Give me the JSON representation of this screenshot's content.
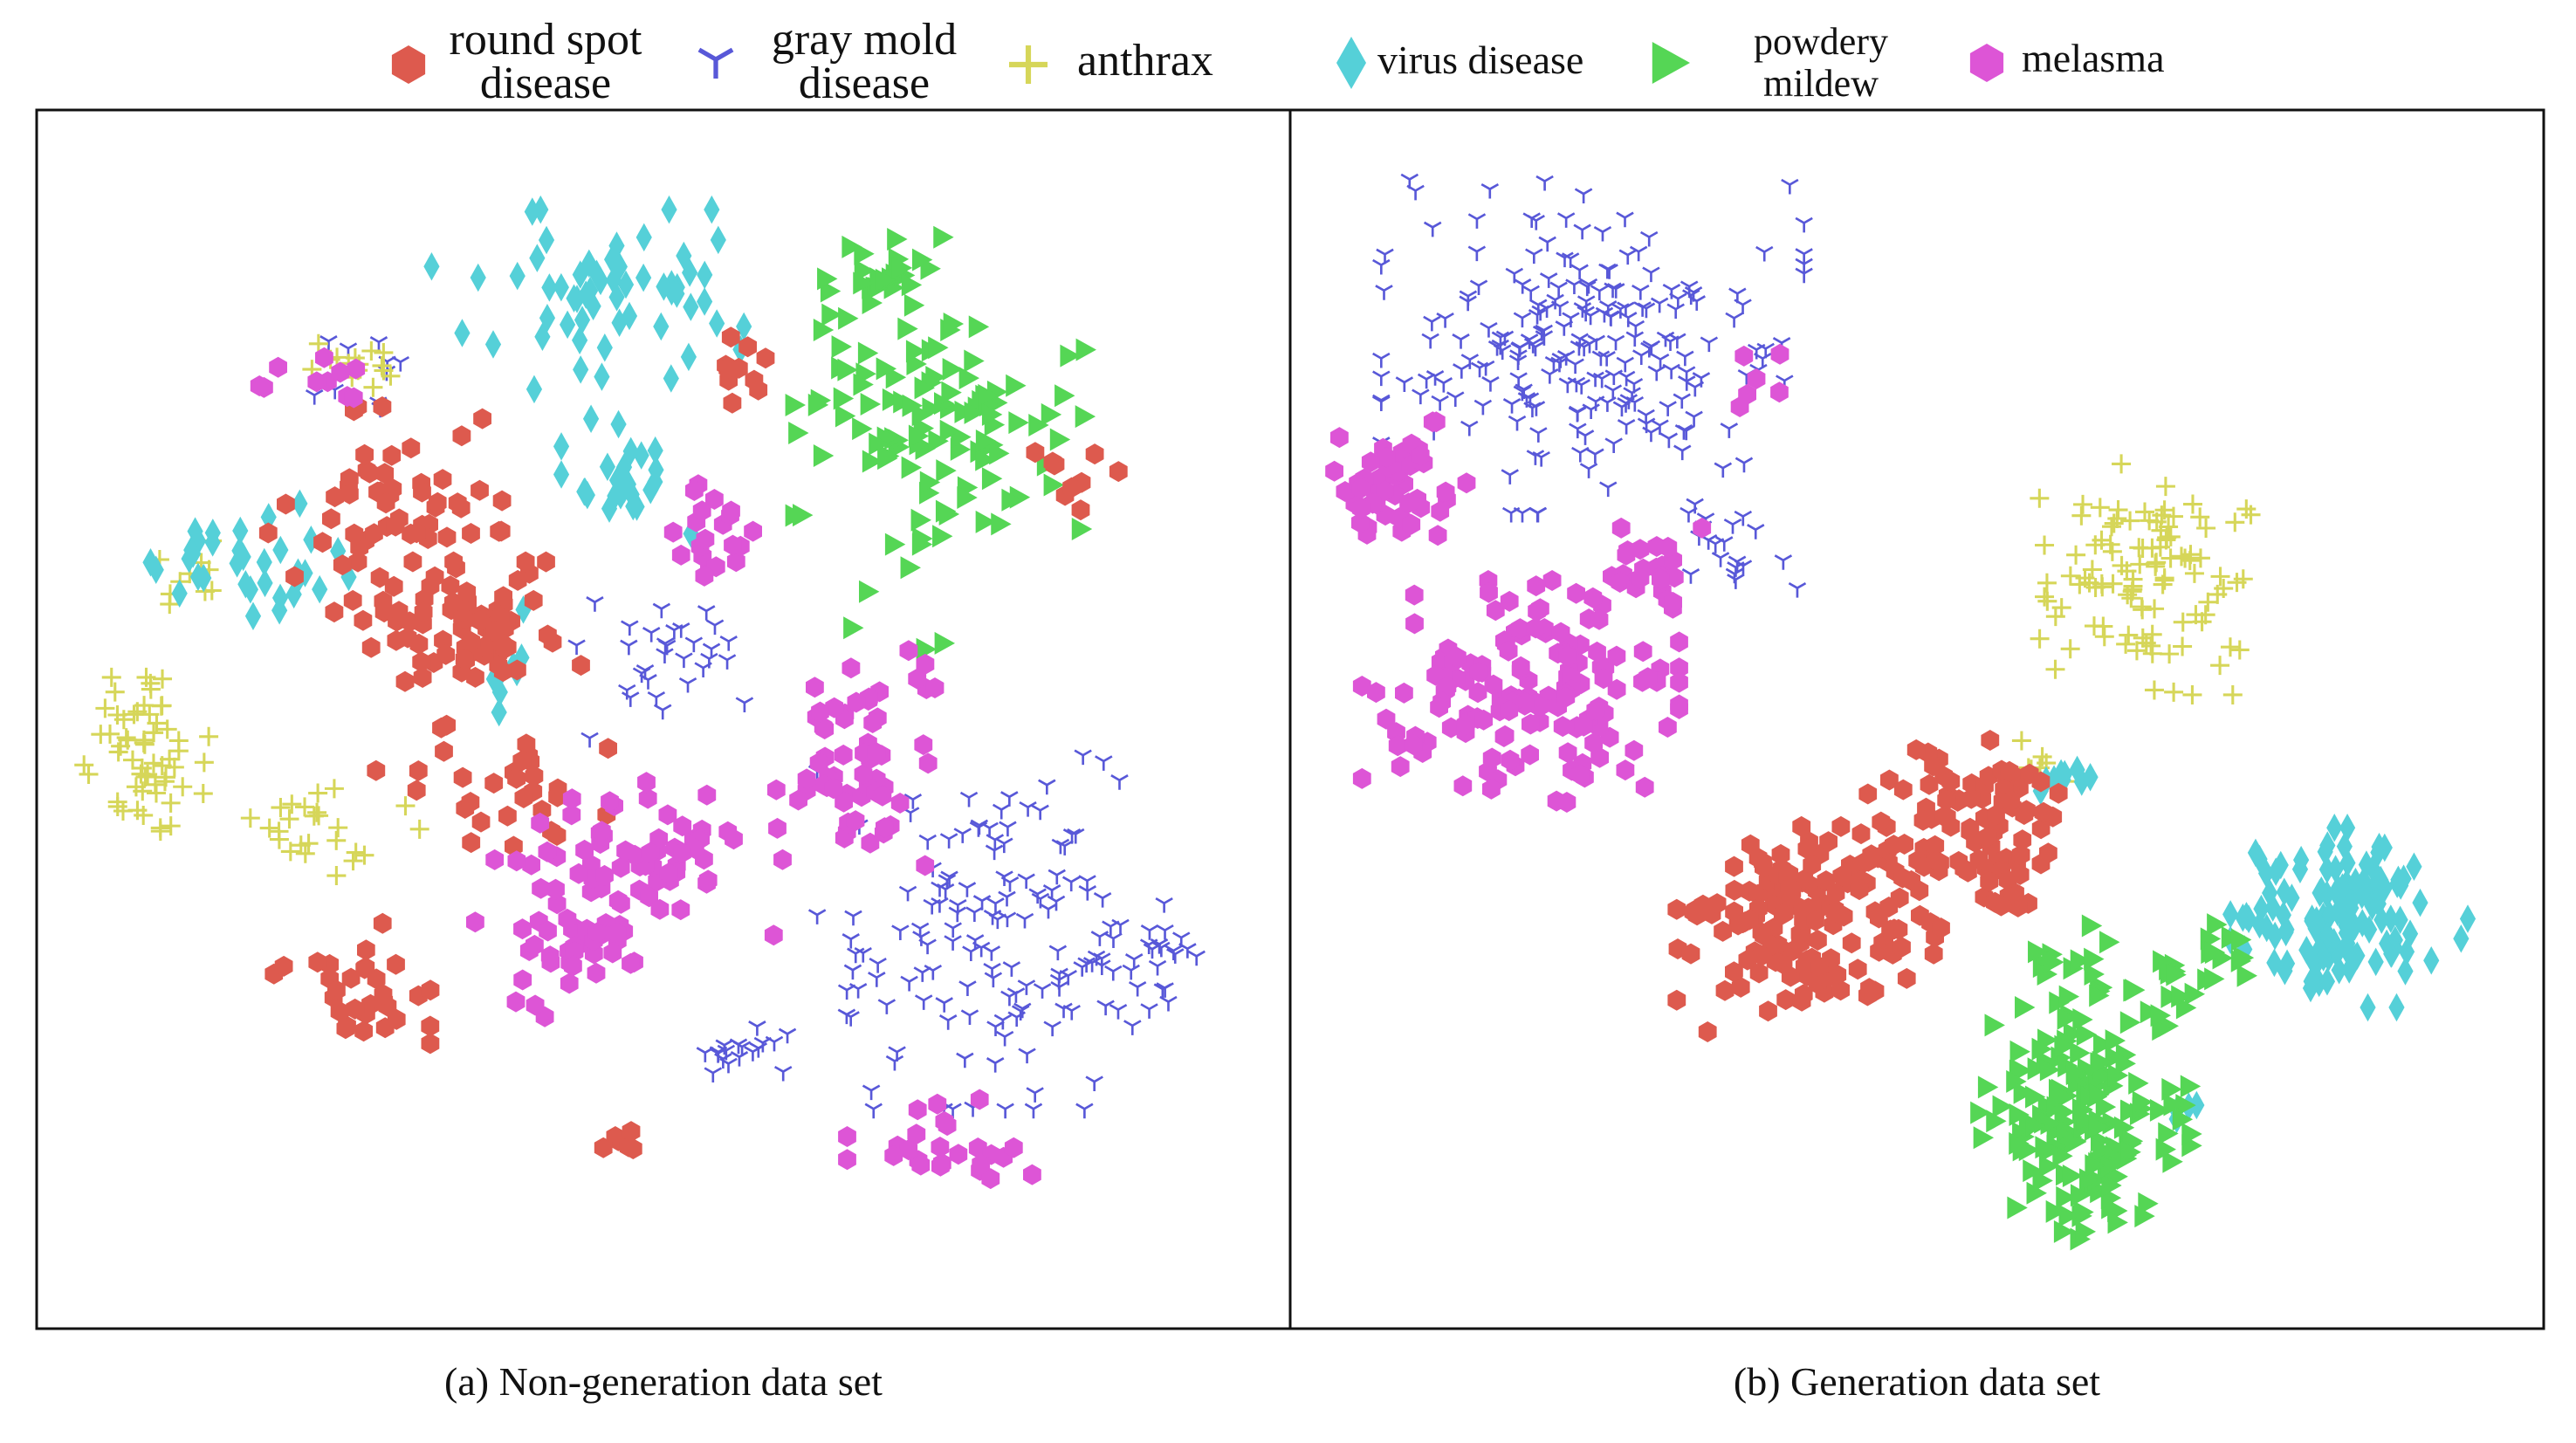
{
  "chart_data": [
    {
      "type": "scatter",
      "title": "",
      "caption": "(a) Non-generation data set",
      "xlabel": "",
      "ylabel": "",
      "xlim": [
        0,
        100
      ],
      "ylim": [
        0,
        100
      ],
      "grid": false,
      "clusters": [
        {
          "class": "round_spot",
          "blobs": [
            {
              "cx": 34,
              "cy": 58,
              "rx": 10,
              "ry": 5,
              "n": 70
            },
            {
              "cx": 27,
              "cy": 68,
              "rx": 9,
              "ry": 8,
              "n": 60
            },
            {
              "cx": 24,
              "cy": 27,
              "rx": 6,
              "ry": 5,
              "n": 30
            },
            {
              "cx": 37,
              "cy": 44,
              "rx": 10,
              "ry": 5,
              "n": 30
            },
            {
              "cx": 57,
              "cy": 80,
              "rx": 3,
              "ry": 3,
              "n": 10
            },
            {
              "cx": 84,
              "cy": 71,
              "rx": 4,
              "ry": 3,
              "n": 10
            },
            {
              "cx": 47,
              "cy": 14,
              "rx": 3,
              "ry": 2,
              "n": 6
            }
          ]
        },
        {
          "class": "gray_mold",
          "blobs": [
            {
              "cx": 76,
              "cy": 32,
              "rx": 12,
              "ry": 14,
              "n": 130
            },
            {
              "cx": 90,
              "cy": 30,
              "rx": 5,
              "ry": 5,
              "n": 30
            },
            {
              "cx": 50,
              "cy": 55,
              "rx": 8,
              "ry": 6,
              "n": 30
            },
            {
              "cx": 57,
              "cy": 22,
              "rx": 5,
              "ry": 3,
              "n": 18
            },
            {
              "cx": 25,
              "cy": 80,
              "rx": 4,
              "ry": 3,
              "n": 10
            }
          ]
        },
        {
          "class": "anthrax",
          "blobs": [
            {
              "cx": 7,
              "cy": 47,
              "rx": 5,
              "ry": 6,
              "n": 60
            },
            {
              "cx": 22,
              "cy": 41,
              "rx": 7,
              "ry": 4,
              "n": 25
            },
            {
              "cx": 24,
              "cy": 80,
              "rx": 4,
              "ry": 2,
              "n": 15
            },
            {
              "cx": 11,
              "cy": 62,
              "rx": 3,
              "ry": 3,
              "n": 10
            }
          ]
        },
        {
          "class": "virus",
          "blobs": [
            {
              "cx": 45,
              "cy": 86,
              "rx": 13,
              "ry": 7,
              "n": 60
            },
            {
              "cx": 47,
              "cy": 71,
              "rx": 5,
              "ry": 5,
              "n": 25
            },
            {
              "cx": 15,
              "cy": 63,
              "rx": 8,
              "ry": 5,
              "n": 35
            },
            {
              "cx": 38,
              "cy": 55,
              "rx": 3,
              "ry": 4,
              "n": 8
            }
          ]
        },
        {
          "class": "powdery",
          "blobs": [
            {
              "cx": 73,
              "cy": 76,
              "rx": 11,
              "ry": 10,
              "n": 110
            },
            {
              "cx": 69,
              "cy": 89,
              "rx": 6,
              "ry": 3,
              "n": 20
            },
            {
              "cx": 70,
              "cy": 60,
              "rx": 10,
              "ry": 8,
              "n": 6
            }
          ]
        },
        {
          "class": "melasma",
          "blobs": [
            {
              "cx": 66,
              "cy": 46,
              "rx": 6,
              "ry": 9,
              "n": 60
            },
            {
              "cx": 48,
              "cy": 38,
              "rx": 12,
              "ry": 6,
              "n": 60
            },
            {
              "cx": 42,
              "cy": 30,
              "rx": 7,
              "ry": 5,
              "n": 40
            },
            {
              "cx": 73,
              "cy": 13,
              "rx": 7,
              "ry": 4,
              "n": 25
            },
            {
              "cx": 54,
              "cy": 66,
              "rx": 4,
              "ry": 4,
              "n": 20
            },
            {
              "cx": 20,
              "cy": 79,
              "rx": 4,
              "ry": 3,
              "n": 10
            }
          ]
        }
      ]
    },
    {
      "type": "scatter",
      "title": "",
      "caption": "(b) Generation data set",
      "xlabel": "",
      "ylabel": "",
      "xlim": [
        0,
        100
      ],
      "ylim": [
        0,
        100
      ],
      "grid": false,
      "clusters": [
        {
          "class": "round_spot",
          "blobs": [
            {
              "cx": 41,
              "cy": 32,
              "rx": 10,
              "ry": 8,
              "n": 150
            },
            {
              "cx": 54,
              "cy": 42,
              "rx": 8,
              "ry": 6,
              "n": 80
            },
            {
              "cx": 58,
              "cy": 35,
              "rx": 3,
              "ry": 3,
              "n": 10
            }
          ]
        },
        {
          "class": "gray_mold",
          "blobs": [
            {
              "cx": 23,
              "cy": 82,
              "rx": 16,
              "ry": 13,
              "n": 220
            },
            {
              "cx": 34,
              "cy": 65,
              "rx": 6,
              "ry": 4,
              "n": 20
            }
          ]
        },
        {
          "class": "anthrax",
          "blobs": [
            {
              "cx": 69,
              "cy": 62,
              "rx": 8,
              "ry": 9,
              "n": 110
            },
            {
              "cx": 60,
              "cy": 46,
              "rx": 3,
              "ry": 3,
              "n": 8
            }
          ]
        },
        {
          "class": "virus",
          "blobs": [
            {
              "cx": 86,
              "cy": 33,
              "rx": 9,
              "ry": 7,
              "n": 130
            },
            {
              "cx": 61,
              "cy": 45,
              "rx": 6,
              "ry": 2,
              "n": 10
            },
            {
              "cx": 72,
              "cy": 17,
              "rx": 2,
              "ry": 2,
              "n": 4
            }
          ]
        },
        {
          "class": "powdery",
          "blobs": [
            {
              "cx": 64,
              "cy": 16,
              "rx": 8,
              "ry": 10,
              "n": 170
            },
            {
              "cx": 73,
              "cy": 28,
              "rx": 5,
              "ry": 4,
              "n": 25
            },
            {
              "cx": 62,
              "cy": 29,
              "rx": 4,
              "ry": 3,
              "n": 15
            }
          ]
        },
        {
          "class": "melasma",
          "blobs": [
            {
              "cx": 17,
              "cy": 52,
              "rx": 12,
              "ry": 9,
              "n": 150
            },
            {
              "cx": 7,
              "cy": 70,
              "rx": 5,
              "ry": 5,
              "n": 50
            },
            {
              "cx": 27,
              "cy": 62,
              "rx": 5,
              "ry": 4,
              "n": 25
            },
            {
              "cx": 36,
              "cy": 78,
              "rx": 4,
              "ry": 3,
              "n": 6
            }
          ]
        }
      ]
    }
  ],
  "legend": {
    "placement": "top",
    "items": [
      {
        "key": "round_spot",
        "marker": "hexagon",
        "color": "#dd5a4e",
        "lines": [
          "round spot",
          "disease"
        ]
      },
      {
        "key": "gray_mold",
        "marker": "tri-branch",
        "color": "#5858d8",
        "lines": [
          "gray mold",
          "disease"
        ]
      },
      {
        "key": "anthrax",
        "marker": "plus",
        "color": "#d6d659",
        "lines": [
          "anthrax"
        ]
      },
      {
        "key": "virus",
        "marker": "diamond",
        "color": "#55d0d8",
        "lines": [
          "virus disease"
        ]
      },
      {
        "key": "powdery",
        "marker": "triangle-right",
        "color": "#55d655",
        "lines": [
          "powdery",
          "mildew"
        ]
      },
      {
        "key": "melasma",
        "marker": "hexagon",
        "color": "#dd55d6",
        "lines": [
          "melasma"
        ]
      }
    ]
  }
}
